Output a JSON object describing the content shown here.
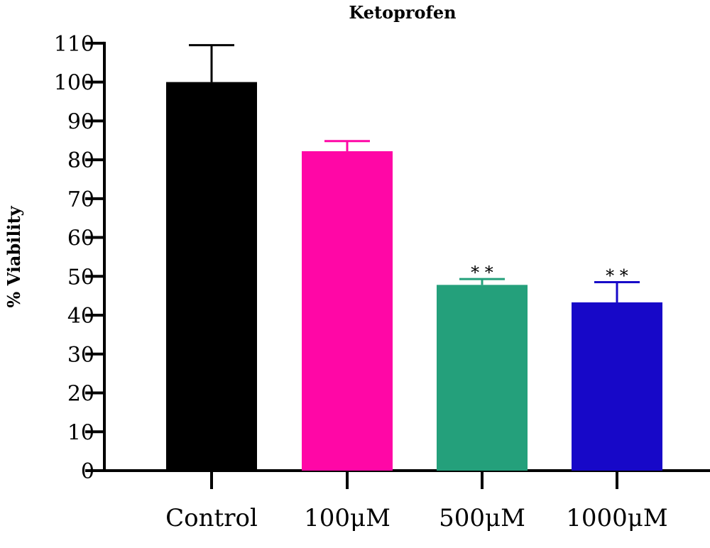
{
  "chart_data": {
    "type": "bar",
    "title": "Ketoprofen",
    "ylabel": "% Viability",
    "xlabel": "",
    "ylim": [
      0,
      110
    ],
    "yticks": [
      0,
      10,
      20,
      30,
      40,
      50,
      60,
      70,
      80,
      90,
      100,
      110
    ],
    "categories": [
      "Control",
      "100μM",
      "500μM",
      "1000μM"
    ],
    "values": [
      100,
      82.2,
      47.8,
      43.3
    ],
    "error_upper": [
      9.5,
      2.6,
      1.5,
      5.2
    ],
    "significance": [
      "",
      "",
      "* *",
      "* *"
    ],
    "colors": [
      "#000000",
      "#ff07a6",
      "#24a07b",
      "#1708c8"
    ],
    "grid": false,
    "legend": "none"
  }
}
